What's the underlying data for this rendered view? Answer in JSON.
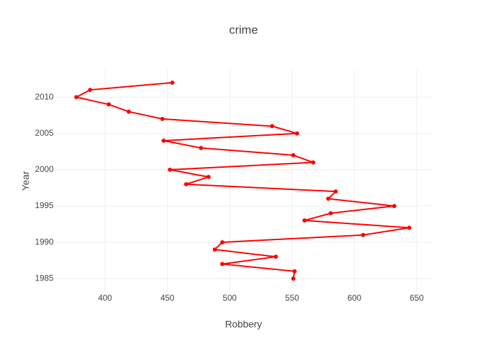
{
  "chart_data": {
    "type": "line",
    "title": "crime",
    "x_label": "Robbery",
    "y_label": "Year",
    "color": "#ff0000",
    "x": [
      551,
      552,
      494,
      537,
      488,
      494,
      607,
      644,
      560,
      581,
      632,
      579,
      585,
      465,
      483,
      452,
      567,
      551,
      477,
      447,
      554,
      534,
      446,
      419,
      403,
      377,
      388,
      454
    ],
    "y": [
      1985,
      1986,
      1987,
      1988,
      1989,
      1990,
      1991,
      1992,
      1993,
      1994,
      1995,
      1996,
      1997,
      1998,
      1999,
      2000,
      2001,
      2002,
      2003,
      2004,
      2005,
      2006,
      2007,
      2008,
      2009,
      2010,
      2011,
      2012
    ],
    "xlim": [
      360.4,
      661.7
    ],
    "xticks": [
      400,
      450,
      500,
      550,
      600,
      650
    ],
    "ylim": [
      1983.1,
      2013.8
    ],
    "yticks": [
      1985,
      1990,
      1995,
      2000,
      2005,
      2010
    ],
    "grid": true
  }
}
